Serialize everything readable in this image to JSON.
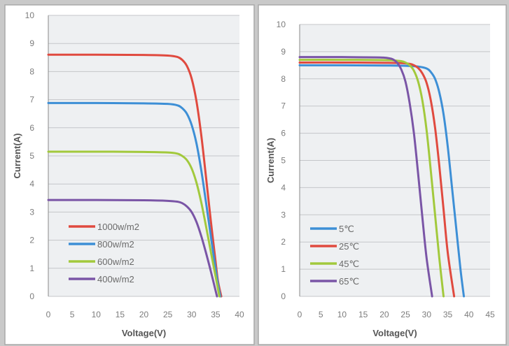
{
  "chart_data": [
    {
      "type": "line",
      "title": "",
      "xlabel": "Voltage(V)",
      "ylabel": "Current(A)",
      "xlim": [
        0,
        40
      ],
      "ylim": [
        0,
        10
      ],
      "xticks": [
        "0",
        "5",
        "10",
        "15",
        "20",
        "25",
        "30",
        "35",
        "40"
      ],
      "yticks": [
        "0",
        "1",
        "2",
        "3",
        "4",
        "5",
        "6",
        "7",
        "8",
        "9",
        "10"
      ],
      "grid": true,
      "legend_position": "bottom-left",
      "series": [
        {
          "name": "1000w/m2",
          "color": "#e04a3f",
          "x": [
            0,
            10,
            20,
            25,
            27,
            28,
            29,
            30,
            31,
            32,
            33,
            34,
            35,
            35.5,
            36.2
          ],
          "y": [
            8.6,
            8.6,
            8.59,
            8.57,
            8.52,
            8.42,
            8.2,
            7.75,
            6.95,
            5.75,
            4.25,
            2.7,
            1.25,
            0.55,
            0
          ]
        },
        {
          "name": "800w/m2",
          "color": "#3d8fd6",
          "x": [
            0,
            10,
            20,
            25,
            27,
            28,
            29,
            30,
            31,
            32,
            33,
            34,
            35,
            35.5,
            36.0
          ],
          "y": [
            6.88,
            6.88,
            6.87,
            6.85,
            6.8,
            6.7,
            6.5,
            6.1,
            5.45,
            4.5,
            3.35,
            2.15,
            1.0,
            0.45,
            0
          ]
        },
        {
          "name": "600w/m2",
          "color": "#a2c93c",
          "x": [
            0,
            10,
            20,
            25,
            27,
            28,
            29,
            30,
            31,
            32,
            33,
            34,
            35,
            35.8
          ],
          "y": [
            5.15,
            5.15,
            5.14,
            5.12,
            5.08,
            5.0,
            4.85,
            4.55,
            4.05,
            3.35,
            2.5,
            1.6,
            0.72,
            0
          ]
        },
        {
          "name": "400w/m2",
          "color": "#7a55a6",
          "x": [
            0,
            10,
            20,
            25,
            27,
            28,
            29,
            30,
            31,
            32,
            33,
            34,
            35.3
          ],
          "y": [
            3.43,
            3.43,
            3.42,
            3.4,
            3.37,
            3.32,
            3.2,
            3.0,
            2.65,
            2.15,
            1.55,
            0.9,
            0
          ]
        }
      ]
    },
    {
      "type": "line",
      "title": "",
      "xlabel": "Voltage(V)",
      "ylabel": "Current(A)",
      "xlim": [
        0,
        45
      ],
      "ylim": [
        0,
        10
      ],
      "xticks": [
        "0",
        "5",
        "10",
        "15",
        "20",
        "25",
        "30",
        "35",
        "40",
        "45"
      ],
      "yticks": [
        "0",
        "1",
        "2",
        "3",
        "4",
        "5",
        "6",
        "7",
        "8",
        "9",
        "10"
      ],
      "grid": true,
      "legend_position": "bottom-left",
      "series": [
        {
          "name": "5℃",
          "color": "#3d8fd6",
          "x": [
            0,
            10,
            20,
            25,
            28,
            30,
            31,
            32,
            33,
            34,
            35,
            36,
            37,
            38,
            38.8
          ],
          "y": [
            8.5,
            8.5,
            8.49,
            8.48,
            8.45,
            8.38,
            8.25,
            8.0,
            7.5,
            6.7,
            5.5,
            4.0,
            2.5,
            1.0,
            0
          ]
        },
        {
          "name": "25℃",
          "color": "#e04a3f",
          "x": [
            0,
            10,
            20,
            24,
            26,
            27,
            28,
            29,
            30,
            31,
            32,
            33,
            34,
            35,
            36.5
          ],
          "y": [
            8.6,
            8.6,
            8.59,
            8.58,
            8.55,
            8.5,
            8.4,
            8.2,
            7.85,
            7.2,
            6.2,
            4.8,
            3.2,
            1.6,
            0
          ]
        },
        {
          "name": "45℃",
          "color": "#a2c93c",
          "x": [
            0,
            10,
            20,
            22,
            24,
            25,
            26,
            27,
            28,
            29,
            30,
            31,
            32,
            33,
            34.0
          ],
          "y": [
            8.7,
            8.7,
            8.69,
            8.68,
            8.65,
            8.6,
            8.5,
            8.3,
            7.9,
            7.2,
            6.1,
            4.6,
            3.0,
            1.4,
            0
          ]
        },
        {
          "name": "65℃",
          "color": "#7a55a6",
          "x": [
            0,
            10,
            18,
            20,
            21,
            22,
            23,
            24,
            25,
            26,
            27,
            28,
            29,
            30,
            31.3
          ],
          "y": [
            8.8,
            8.8,
            8.79,
            8.78,
            8.76,
            8.72,
            8.6,
            8.35,
            7.9,
            7.1,
            6.0,
            4.5,
            2.9,
            1.4,
            0
          ]
        }
      ]
    }
  ]
}
